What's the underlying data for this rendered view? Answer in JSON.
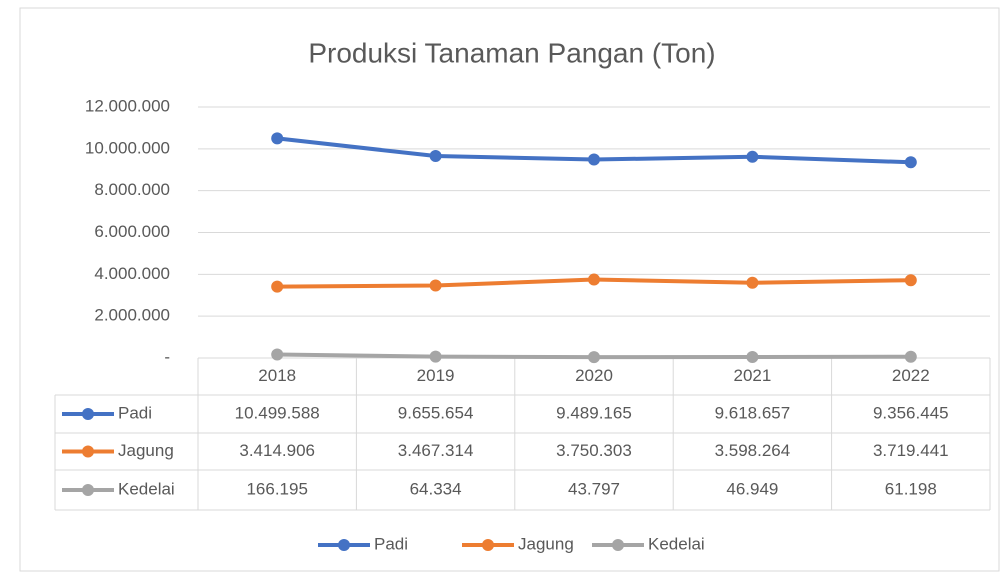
{
  "chart_data": {
    "type": "line",
    "title": "Produksi Tanaman Pangan (Ton)",
    "categories": [
      "2018",
      "2019",
      "2020",
      "2021",
      "2022"
    ],
    "series": [
      {
        "name": "Padi",
        "color": "#4472c4",
        "values": [
          10499588,
          9655654,
          9489165,
          9618657,
          9356445
        ],
        "value_labels": [
          "10.499.588",
          "9.655.654",
          "9.489.165",
          "9.618.657",
          "9.356.445"
        ]
      },
      {
        "name": "Jagung",
        "color": "#ed7d31",
        "values": [
          3414906,
          3467314,
          3750303,
          3598264,
          3719441
        ],
        "value_labels": [
          "3.414.906",
          "3.467.314",
          "3.750.303",
          "3.598.264",
          "3.719.441"
        ]
      },
      {
        "name": "Kedelai",
        "color": "#a5a5a5",
        "values": [
          166195,
          64334,
          43797,
          46949,
          61198
        ],
        "value_labels": [
          "166.195",
          "64.334",
          "43.797",
          "46.949",
          "61.198"
        ]
      }
    ],
    "ylim": [
      0,
      12000000
    ],
    "yticks": [
      {
        "value": 0,
        "label": "-"
      },
      {
        "value": 2000000,
        "label": "2.000.000"
      },
      {
        "value": 4000000,
        "label": "4.000.000"
      },
      {
        "value": 6000000,
        "label": "6.000.000"
      },
      {
        "value": 8000000,
        "label": "8.000.000"
      },
      {
        "value": 10000000,
        "label": "10.000.000"
      },
      {
        "value": 12000000,
        "label": "12.000.000"
      }
    ],
    "grid": true,
    "legend": "bottom"
  }
}
